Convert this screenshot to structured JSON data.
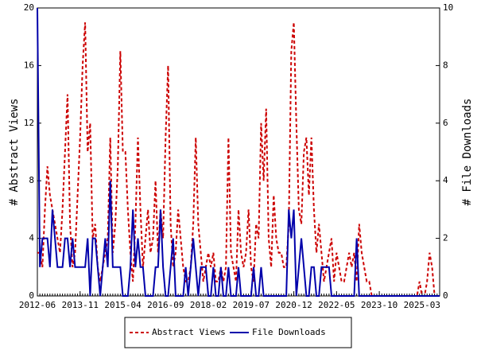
{
  "chart_data": {
    "type": "line",
    "y_label": "# Abstract Views",
    "y2_label": "# File Downloads",
    "xlim": [
      "2012-06",
      "2025-10"
    ],
    "xticks": [
      "2012-06",
      "2013-11",
      "2015-04",
      "2016-09",
      "2018-02",
      "2019-07",
      "2020-12",
      "2022-05",
      "2023-10",
      "2025-03"
    ],
    "ylim": [
      0,
      20
    ],
    "yticks": [
      0,
      4,
      8,
      12,
      16,
      20
    ],
    "y2lim": [
      0,
      10
    ],
    "y2ticks": [
      0,
      2,
      4,
      6,
      8,
      10
    ],
    "x": [
      "2012-06",
      "2012-07",
      "2012-08",
      "2012-09",
      "2012-10",
      "2012-11",
      "2012-12",
      "2013-01",
      "2013-02",
      "2013-03",
      "2013-04",
      "2013-05",
      "2013-06",
      "2013-07",
      "2013-08",
      "2013-09",
      "2013-10",
      "2013-11",
      "2013-12",
      "2014-01",
      "2014-02",
      "2014-03",
      "2014-04",
      "2014-05",
      "2014-06",
      "2014-07",
      "2014-08",
      "2014-09",
      "2014-10",
      "2014-11",
      "2014-12",
      "2015-01",
      "2015-02",
      "2015-03",
      "2015-04",
      "2015-05",
      "2015-06",
      "2015-07",
      "2015-08",
      "2015-09",
      "2015-10",
      "2015-11",
      "2015-12",
      "2016-01",
      "2016-02",
      "2016-03",
      "2016-04",
      "2016-05",
      "2016-06",
      "2016-07",
      "2016-08",
      "2016-09",
      "2016-10",
      "2016-11",
      "2016-12",
      "2017-01",
      "2017-02",
      "2017-03",
      "2017-04",
      "2017-05",
      "2017-06",
      "2017-07",
      "2017-08",
      "2017-09",
      "2017-10",
      "2017-11",
      "2017-12",
      "2018-01",
      "2018-02",
      "2018-03",
      "2018-04",
      "2018-05",
      "2018-06",
      "2018-07",
      "2018-08",
      "2018-09",
      "2018-10",
      "2018-11",
      "2018-12",
      "2019-01",
      "2019-02",
      "2019-03",
      "2019-04",
      "2019-05",
      "2019-06",
      "2019-07",
      "2019-08",
      "2019-09",
      "2019-10",
      "2019-11",
      "2019-12",
      "2020-01",
      "2020-02",
      "2020-03",
      "2020-04",
      "2020-05",
      "2020-06",
      "2020-07",
      "2020-08",
      "2020-09",
      "2020-10",
      "2020-11",
      "2020-12",
      "2021-01",
      "2021-02",
      "2021-03",
      "2021-04",
      "2021-05",
      "2021-06",
      "2021-07",
      "2021-08",
      "2021-09",
      "2021-10",
      "2021-11",
      "2021-12",
      "2022-01",
      "2022-02",
      "2022-03",
      "2022-04",
      "2022-05",
      "2022-06",
      "2022-07",
      "2022-08",
      "2022-09",
      "2022-10",
      "2022-11",
      "2022-12",
      "2023-01",
      "2023-02",
      "2023-03",
      "2023-04",
      "2023-05",
      "2023-06",
      "2023-07",
      "2023-08",
      "2023-09",
      "2023-10",
      "2023-11",
      "2023-12",
      "2024-01",
      "2024-02",
      "2024-03",
      "2024-04",
      "2024-05",
      "2024-06",
      "2024-07",
      "2024-08",
      "2024-09",
      "2024-10",
      "2024-11",
      "2024-12",
      "2025-01",
      "2025-02",
      "2025-03",
      "2025-04",
      "2025-05",
      "2025-06",
      "2025-07",
      "2025-08",
      "2025-09",
      "2025-10"
    ],
    "series": [
      {
        "name": "Abstract Views",
        "color": "#cc0000",
        "dash": "4,3",
        "values": [
          3,
          3,
          2,
          6,
          9,
          7,
          6,
          5,
          4,
          3,
          6,
          10,
          14,
          5,
          2,
          3,
          7,
          11,
          16,
          19,
          10,
          12,
          4,
          5,
          2,
          1,
          2,
          3,
          4,
          11,
          3,
          5,
          9,
          17,
          10,
          10,
          6,
          3,
          1,
          5,
          11,
          6,
          2,
          4,
          6,
          3,
          4,
          8,
          3,
          6,
          4,
          11,
          16,
          5,
          2,
          3,
          6,
          4,
          2,
          1,
          1,
          2,
          5,
          11,
          5,
          3,
          1,
          2,
          3,
          2,
          3,
          1,
          1,
          2,
          1,
          2,
          11,
          3,
          2,
          1,
          6,
          3,
          2,
          3,
          6,
          2,
          1,
          5,
          4,
          12,
          8,
          13,
          4,
          2,
          7,
          4,
          3,
          3,
          2,
          2,
          5,
          17,
          19,
          12,
          6,
          5,
          10,
          11,
          7,
          11,
          6,
          3,
          5,
          3,
          1,
          2,
          3,
          4,
          1,
          3,
          2,
          1,
          1,
          2,
          3,
          2,
          3,
          1,
          5,
          3,
          2,
          1,
          1,
          0,
          0,
          0,
          0,
          0,
          0,
          0,
          0,
          0,
          0,
          0,
          0,
          0,
          0,
          0,
          0,
          0,
          0,
          0,
          1,
          0,
          0,
          1,
          3,
          2,
          0,
          0,
          0
        ]
      },
      {
        "name": "File Downloads",
        "color": "#0000aa",
        "axis": "y2",
        "values": [
          10,
          1,
          2,
          2,
          2,
          1,
          3,
          2,
          1,
          1,
          1,
          2,
          2,
          1,
          2,
          1,
          1,
          1,
          1,
          1,
          2,
          0,
          2,
          2,
          1,
          0,
          1,
          2,
          1,
          4,
          1,
          1,
          1,
          1,
          0,
          0,
          0,
          1,
          3,
          1,
          2,
          1,
          1,
          0,
          0,
          0,
          0,
          1,
          1,
          3,
          1,
          0,
          0,
          1,
          2,
          0,
          0,
          0,
          0,
          1,
          0,
          1,
          2,
          1,
          0,
          1,
          1,
          1,
          0,
          0,
          1,
          0,
          0,
          1,
          0,
          0,
          1,
          0,
          0,
          0,
          1,
          0,
          0,
          0,
          0,
          0,
          1,
          0,
          0,
          1,
          0,
          0,
          0,
          0,
          0,
          0,
          0,
          0,
          0,
          0,
          3,
          2,
          3,
          0,
          1,
          2,
          1,
          0,
          0,
          1,
          1,
          0,
          0,
          1,
          1,
          1,
          1,
          0,
          0,
          0,
          0,
          0,
          0,
          0,
          0,
          0,
          0,
          2,
          0,
          0,
          0,
          0,
          0,
          0,
          0,
          0,
          0,
          0,
          0,
          0,
          0,
          0,
          0,
          0,
          0,
          0,
          0,
          0,
          0,
          0,
          0,
          0,
          0,
          0,
          0,
          0,
          0,
          0,
          0,
          0,
          0
        ]
      }
    ]
  }
}
